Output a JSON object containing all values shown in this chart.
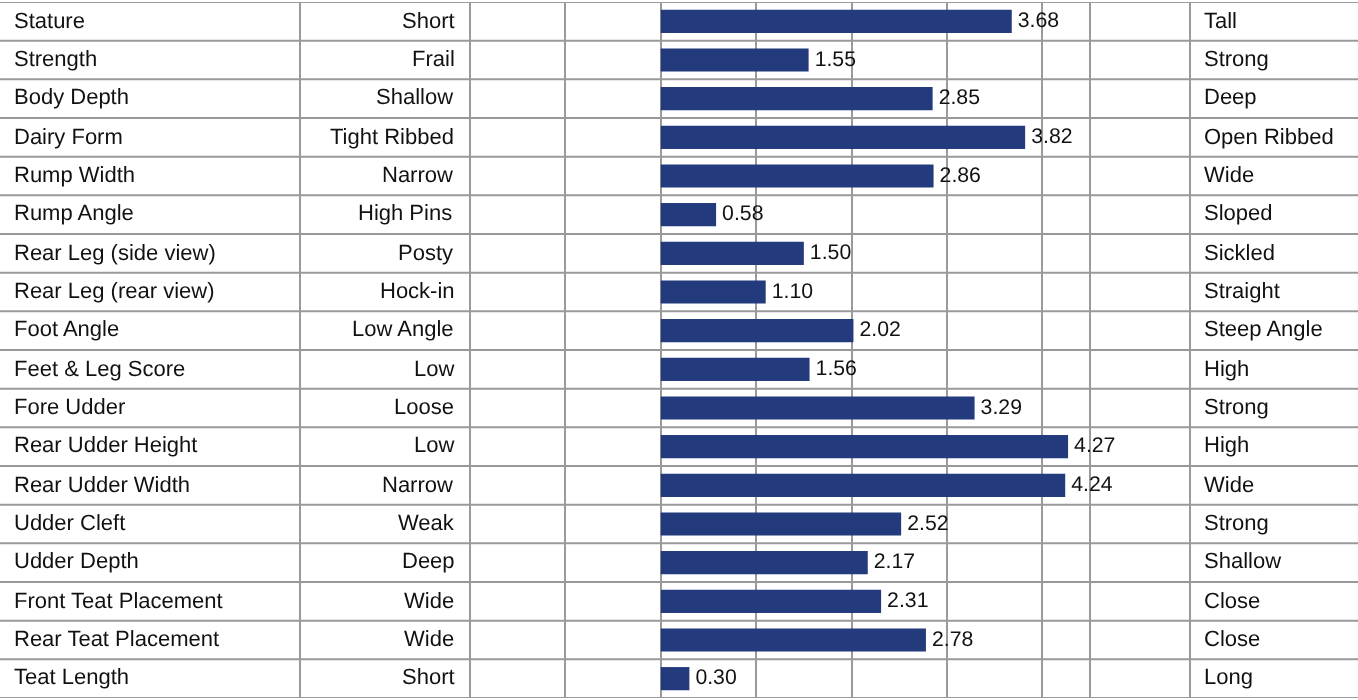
{
  "chart_data": {
    "type": "bar",
    "orientation": "horizontal",
    "categories": [
      "Stature",
      "Strength",
      "Body Depth",
      "Dairy Form",
      "Rump Width",
      "Rump Angle",
      "Rear Leg (side view)",
      "Rear Leg (rear view)",
      "Foot Angle",
      "Feet & Leg Score",
      "Fore Udder",
      "Rear Udder Height",
      "Rear Udder Width",
      "Udder Cleft",
      "Udder Depth",
      "Front Teat Placement",
      "Rear Teat Placement",
      "Teat Length"
    ],
    "values": [
      3.68,
      1.55,
      2.85,
      3.82,
      2.86,
      0.58,
      1.5,
      1.1,
      2.02,
      1.56,
      3.29,
      4.27,
      4.24,
      2.52,
      2.17,
      2.31,
      2.78,
      0.3
    ],
    "color": "#233a7d",
    "xlim": [
      -2,
      4.5
    ],
    "xticks": [
      {
        "value": -2,
        "label": null
      },
      {
        "value": -1,
        "label": null
      },
      {
        "value": 0,
        "label": null
      },
      {
        "value": 1,
        "label": null
      },
      {
        "value": 2,
        "label": null
      },
      {
        "value": 3,
        "label": null
      },
      {
        "value": 4,
        "label": null
      }
    ],
    "value_labels": [
      "3.68",
      "1.55",
      "2.85",
      "3.82",
      "2.86",
      "0.58",
      "1.50",
      "1.10",
      "2.02",
      "1.56",
      "3.29",
      "4.27",
      "4.24",
      "2.52",
      "2.17",
      "2.31",
      "2.78",
      "0.30"
    ],
    "grid": "x",
    "annotations": [
      "Short",
      "Frail",
      "Shallow",
      "Tight Ribbed",
      "Narrow",
      "High Pins",
      "Posty",
      "Hock-in",
      "Low Angle",
      "Low",
      "Loose",
      "Low",
      "Narrow",
      "Weak",
      "Deep",
      "Wide",
      "Wide",
      "Short",
      "Tall",
      "Strong",
      "Deep",
      "Open Ribbed",
      "Wide",
      "Sloped",
      "Sickled",
      "Straight",
      "Steep Angle",
      "High",
      "Strong",
      "High",
      "Wide",
      "Strong",
      "Shallow",
      "Close",
      "Close",
      "Long"
    ]
  }
}
